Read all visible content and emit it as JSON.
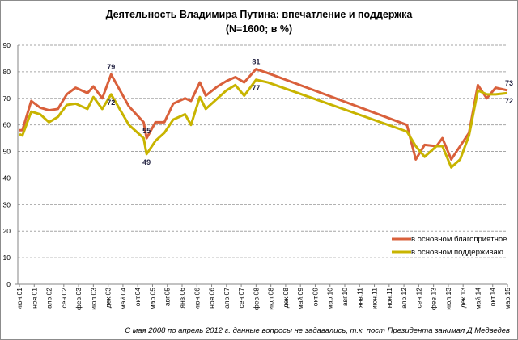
{
  "chart_data": {
    "type": "line",
    "title": "Деятельность Владимира Путина: впечатление и поддержка",
    "subtitle": "(N=1600; в %)",
    "xlabel": "",
    "ylabel": "",
    "x_unit": "months since июн.01",
    "ylim": [
      0,
      90
    ],
    "yticks": [
      0,
      10,
      20,
      30,
      40,
      50,
      60,
      70,
      80,
      90
    ],
    "xlim": [
      0,
      165
    ],
    "xtick_labels": [
      "июн.01",
      "ноя.01",
      "апр.02",
      "сен.02",
      "фев.03",
      "июл.03",
      "дек.03",
      "май.04",
      "окт.04",
      "мар.05",
      "авг.05",
      "янв.06",
      "июн.06",
      "ноя.06",
      "апр.07",
      "сен.07",
      "фев.08",
      "июл.08",
      "дек.08",
      "май.09",
      "окт.09",
      "мар.10",
      "авг.10",
      "янв.11",
      "июн.11",
      "ноя.11",
      "апр.12",
      "сен.12",
      "фев.13",
      "июл.13",
      "дек.13",
      "май.14",
      "окт.14",
      "мар.15"
    ],
    "grid": true,
    "legend_position": "bottom-right",
    "series": [
      {
        "name": "в основном благоприятное",
        "color": "#d9603b",
        "x": [
          0,
          1,
          4,
          7,
          10,
          13,
          16,
          19,
          23,
          25,
          28,
          31,
          37,
          42,
          43,
          46,
          49,
          52,
          56,
          58,
          61,
          63,
          67,
          70,
          73,
          76,
          80,
          84,
          131,
          134,
          137,
          141,
          143,
          146,
          149,
          152,
          155,
          158,
          161,
          165
        ],
        "values": [
          58,
          58,
          69,
          66.5,
          65.5,
          66,
          71.5,
          74,
          72,
          74.5,
          70,
          79,
          67,
          61,
          55,
          61,
          61,
          68,
          70,
          69,
          76,
          71,
          74.5,
          76.5,
          78,
          76,
          81,
          79.5,
          60,
          47,
          52.5,
          52,
          55,
          47,
          52,
          57,
          75,
          70,
          74,
          73
        ]
      },
      {
        "name": "в основном поддерживаю",
        "color": "#c8b400",
        "x": [
          0,
          1,
          4,
          7,
          10,
          13,
          16,
          19,
          23,
          25,
          28,
          31,
          37,
          42,
          43,
          46,
          49,
          52,
          56,
          58,
          61,
          63,
          67,
          70,
          73,
          76,
          80,
          84,
          131,
          134,
          137,
          141,
          143,
          146,
          149,
          152,
          155,
          158,
          161,
          165
        ],
        "values": [
          56.5,
          56,
          65,
          64,
          61,
          63,
          67.5,
          68,
          66,
          70.5,
          66,
          71.5,
          60,
          55,
          49,
          54,
          57,
          62,
          64,
          60,
          70.5,
          66,
          70,
          73,
          75,
          71,
          77,
          76,
          57.5,
          52,
          48,
          52,
          52,
          44,
          47,
          56,
          73,
          71.5,
          71.5,
          72
        ]
      }
    ],
    "annotations": [
      {
        "text": "79",
        "x": 31,
        "y": 79,
        "series": 0
      },
      {
        "text": "72",
        "x": 31,
        "y": 71.5,
        "series": 1
      },
      {
        "text": "55",
        "x": 43,
        "y": 55,
        "series": 0
      },
      {
        "text": "49",
        "x": 43,
        "y": 49,
        "series": 1
      },
      {
        "text": "81",
        "x": 80,
        "y": 81,
        "series": 0
      },
      {
        "text": "77",
        "x": 80,
        "y": 77,
        "series": 1
      },
      {
        "text": "73",
        "x": 165,
        "y": 73,
        "series": 0
      },
      {
        "text": "72",
        "x": 165,
        "y": 72,
        "series": 1
      }
    ],
    "footnote": "С мая 2008  по апрель 2012  г. данные вопросы не задавались, т.к. пост Президента занимал Д.Медведев"
  }
}
